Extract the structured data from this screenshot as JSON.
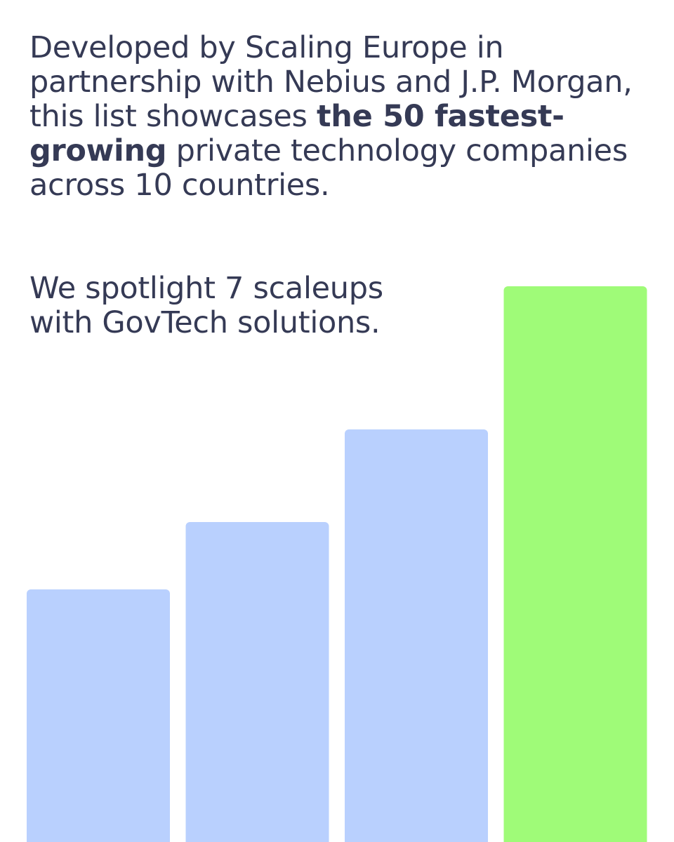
{
  "intro": {
    "part1": "Developed by Scaling Europe in partnership with Nebius and J.P. Morgan, this list showcases ",
    "highlight": "the 50 fastest-growing",
    "part2": " private technology companies across 10 countries."
  },
  "spotlight": {
    "line1": "We spotlight 7 scaleups",
    "line2": "with GovTech solutions."
  },
  "bar_graphic": {
    "levels": [
      0.3,
      0.38,
      0.49,
      0.66
    ],
    "colors": [
      "#b9d0fe",
      "#b9d0fe",
      "#b9d0fe",
      "#9ffb78"
    ]
  }
}
